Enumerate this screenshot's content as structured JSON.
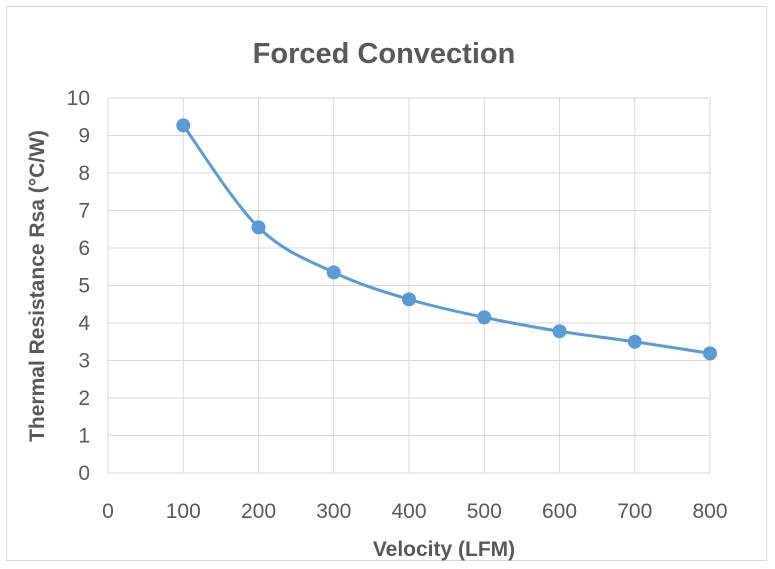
{
  "chart_data": {
    "type": "line",
    "title": "Forced Convection",
    "xlabel": "Velocity (LFM)",
    "ylabel": "Thermal Resistance Rsa (°C/W)",
    "xlim": [
      0,
      800
    ],
    "ylim": [
      0,
      10
    ],
    "x_ticks": [
      "0",
      "100",
      "200",
      "300",
      "400",
      "500",
      "600",
      "700",
      "800"
    ],
    "y_ticks": [
      "0",
      "1",
      "2",
      "3",
      "4",
      "5",
      "6",
      "7",
      "8",
      "9",
      "10"
    ],
    "grid": true,
    "smooth": true,
    "series": [
      {
        "x": [
          100,
          200,
          300,
          400,
          500,
          600,
          700,
          800
        ],
        "values": [
          9.27,
          6.55,
          5.35,
          4.63,
          4.15,
          3.78,
          3.5,
          3.19
        ],
        "color": "#5b9bd5"
      }
    ]
  }
}
